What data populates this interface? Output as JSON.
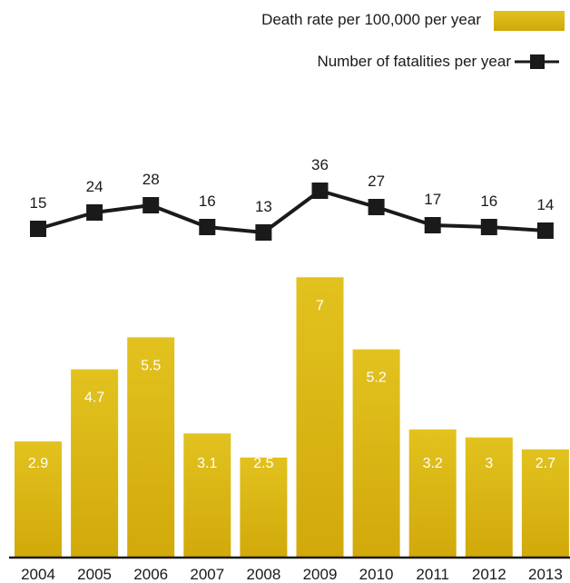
{
  "chart_data": {
    "type": "bar+line",
    "categories": [
      "2004",
      "2005",
      "2006",
      "2007",
      "2008",
      "2009",
      "2010",
      "2011",
      "2012",
      "2013"
    ],
    "series": [
      {
        "name": "Death rate per 100,000 per year",
        "type": "bar",
        "values": [
          2.9,
          4.7,
          5.5,
          3.1,
          2.5,
          7,
          5.2,
          3.2,
          3,
          2.7
        ],
        "color": "#d9b413"
      },
      {
        "name": "Number of fatalities per year",
        "type": "line",
        "values": [
          15,
          24,
          28,
          16,
          13,
          36,
          27,
          17,
          16,
          14
        ],
        "color": "#1a1a1a"
      }
    ],
    "value_labels": {
      "bars": [
        "2.9",
        "4.7",
        "5.5",
        "3.1",
        "2.5",
        "7",
        "5.2",
        "3.2",
        "3",
        "2.7"
      ],
      "line": [
        "15",
        "24",
        "28",
        "16",
        "13",
        "36",
        "27",
        "17",
        "16",
        "14"
      ]
    },
    "legend": {
      "placement": "top-right",
      "entries": [
        "Death rate per 100,000 per year",
        "Number of fatalities per year"
      ]
    },
    "grid": false
  }
}
